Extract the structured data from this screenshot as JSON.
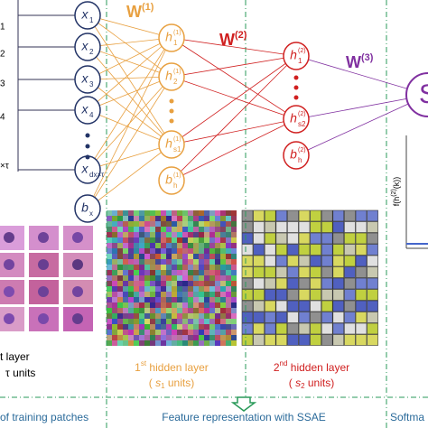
{
  "input_layer": {
    "side_labels": [
      "1",
      "2",
      "3",
      "4",
      "×τ"
    ],
    "nodes": [
      {
        "base": "x",
        "sub": "1"
      },
      {
        "base": "x",
        "sub": "2"
      },
      {
        "base": "x",
        "sub": "3"
      },
      {
        "base": "x",
        "sub": "4"
      },
      {
        "base": "x",
        "sub": "dx×τ"
      },
      {
        "base": "b",
        "sub": "x"
      }
    ],
    "caption": [
      "t layer",
      "τ units"
    ]
  },
  "weights": [
    {
      "base": "W",
      "sup": "(1)"
    },
    {
      "base": "W",
      "sup": "(2)"
    },
    {
      "base": "W",
      "sup": "(3)"
    }
  ],
  "hidden_1": {
    "nodes": [
      {
        "base": "h",
        "sub": "1",
        "sup": "(1)"
      },
      {
        "base": "h",
        "sub": "2",
        "sup": "(1)"
      },
      {
        "base": "h",
        "sub": "s1",
        "sup": "(1)"
      },
      {
        "base": "b",
        "sub": "h",
        "sup": "(1)"
      }
    ],
    "caption": {
      "ordinal": "1",
      "suffix": "st",
      "title": " hidden layer",
      "open": "( ",
      "var": "s",
      "sub": "1",
      "rest": "  units)"
    }
  },
  "hidden_2": {
    "nodes": [
      {
        "base": "h",
        "sub": "1",
        "sup": "(2)"
      },
      {
        "base": "h",
        "sub": "s2",
        "sup": "(2)"
      },
      {
        "base": "b",
        "sub": "h",
        "sup": "(2)"
      }
    ],
    "caption": {
      "ordinal": "2",
      "suffix": "nd",
      "title": " hidden layer",
      "open": "( ",
      "var": "s",
      "sub": "2",
      "rest": " units)"
    }
  },
  "softmax": {
    "node": "S",
    "axis_label": {
      "text": "f(h",
      "sup": "(2)",
      "rest": "(k))"
    }
  },
  "footer": [
    "of training patches",
    "Feature  representation with SSAE",
    "Softma"
  ]
}
